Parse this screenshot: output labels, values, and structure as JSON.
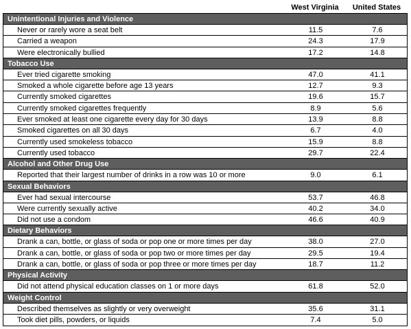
{
  "columns": {
    "col1": "West Virginia",
    "col2": "United States"
  },
  "sections": [
    {
      "title": "Unintentional Injuries and Violence",
      "rows": [
        {
          "label": "Never or rarely wore a seat belt",
          "wv": "11.5",
          "us": "7.6"
        },
        {
          "label": "Carried a weapon",
          "wv": "24.3",
          "us": "17.9"
        },
        {
          "label": "Were electronically bullied",
          "wv": "17.2",
          "us": "14.8"
        }
      ]
    },
    {
      "title": "Tobacco Use",
      "rows": [
        {
          "label": "Ever tried cigarette smoking",
          "wv": "47.0",
          "us": "41.1"
        },
        {
          "label": "Smoked a whole cigarette before age 13 years",
          "wv": "12.7",
          "us": "9.3"
        },
        {
          "label": "Currently smoked cigarettes",
          "wv": "19.6",
          "us": "15.7"
        },
        {
          "label": "Currently smoked cigarettes frequently",
          "wv": "8.9",
          "us": "5.6"
        },
        {
          "label": "Ever smoked at least one cigarette every day for 30 days",
          "wv": "13.9",
          "us": "8.8"
        },
        {
          "label": "Smoked cigarettes on all 30 days",
          "wv": "6.7",
          "us": "4.0"
        },
        {
          "label": "Currently used smokeless tobacco",
          "wv": "15.9",
          "us": "8.8"
        },
        {
          "label": "Currently used tobacco",
          "wv": "29.7",
          "us": "22.4"
        }
      ]
    },
    {
      "title": "Alcohol and Other Drug Use",
      "rows": [
        {
          "label": "Reported that their largest number of drinks in a row was 10 or more",
          "wv": "9.0",
          "us": "6.1"
        }
      ]
    },
    {
      "title": "Sexual Behaviors",
      "rows": [
        {
          "label": "Ever had sexual intercourse",
          "wv": "53.7",
          "us": "46.8"
        },
        {
          "label": "Were currently sexually active",
          "wv": "40.2",
          "us": "34.0"
        },
        {
          "label": "Did not use a condom",
          "wv": "46.6",
          "us": "40.9"
        }
      ]
    },
    {
      "title": "Dietary Behaviors",
      "rows": [
        {
          "label": "Drank a can, bottle, or glass of soda or pop one or more times per day",
          "wv": "38.0",
          "us": "27.0"
        },
        {
          "label": "Drank a can, bottle, or glass of soda or pop two or more times per day",
          "wv": "29.5",
          "us": "19.4"
        },
        {
          "label": "Drank a can, bottle, or glass of soda or pop three or more times per day",
          "wv": "18.7",
          "us": "11.2"
        }
      ]
    },
    {
      "title": "Physical Activity",
      "rows": [
        {
          "label": "Did not attend physical education classes on 1 or more days",
          "wv": "61.8",
          "us": "52.0"
        }
      ]
    },
    {
      "title": "Weight Control",
      "rows": [
        {
          "label": "Described themselves as slightly or very overweight",
          "wv": "35.6",
          "us": "31.1"
        },
        {
          "label": "Took diet pills, powders, or liquids",
          "wv": "7.4",
          "us": "5.0"
        }
      ]
    }
  ]
}
